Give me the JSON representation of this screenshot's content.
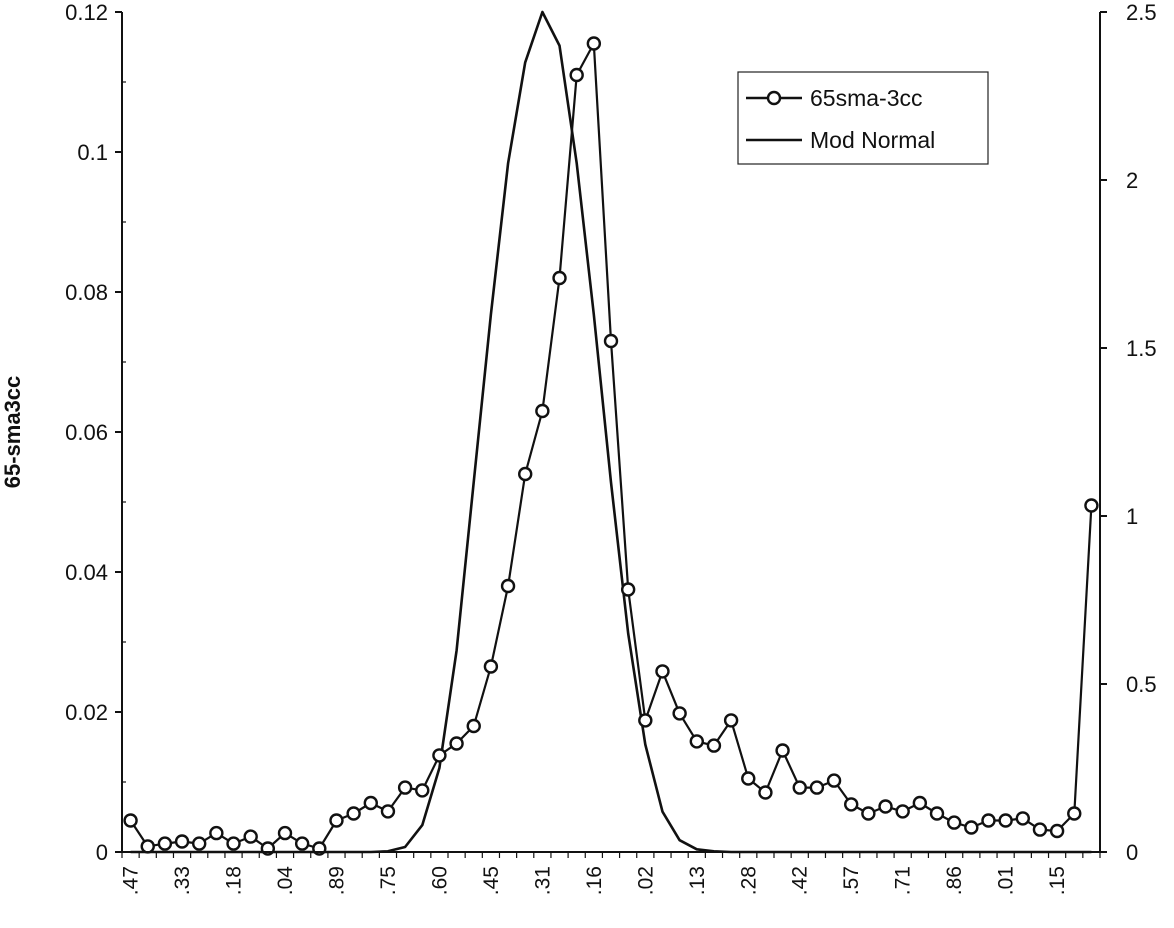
{
  "chart_data": {
    "type": "line",
    "ylabel": "65-sma3cc",
    "ylim": [
      0,
      0.12
    ],
    "y_ticks": [
      "0",
      "0.02",
      "0.04",
      "0.06",
      "0.08",
      "0.1",
      "0.12"
    ],
    "y2lim": [
      0,
      2.5
    ],
    "y2_ticks": [
      "0",
      "0.5",
      "1",
      "1.5",
      "2",
      "2.5"
    ],
    "x_tick_labels": [
      ".47",
      ".33",
      ".18",
      ".04",
      ".89",
      ".75",
      ".60",
      ".45",
      ".31",
      ".16",
      ".02",
      ".13",
      ".28",
      ".42",
      ".57",
      ".71",
      ".86",
      ".01",
      ".15"
    ],
    "legend_position": "top-right",
    "grid": false,
    "series": [
      {
        "name": "65sma-3cc",
        "axis": "left",
        "marker": "circle",
        "values": [
          0.0045,
          0.0008,
          0.0012,
          0.0015,
          0.0012,
          0.0027,
          0.0012,
          0.0022,
          0.0005,
          0.0027,
          0.0012,
          0.0005,
          0.0045,
          0.0055,
          0.007,
          0.0058,
          0.0092,
          0.0088,
          0.0138,
          0.0155,
          0.018,
          0.0265,
          0.038,
          0.054,
          0.063,
          0.082,
          0.111,
          0.1155,
          0.073,
          0.0375,
          0.0188,
          0.0258,
          0.0198,
          0.0158,
          0.0152,
          0.0188,
          0.0105,
          0.0085,
          0.0145,
          0.0092,
          0.0092,
          0.0102,
          0.0068,
          0.0055,
          0.0065,
          0.0058,
          0.007,
          0.0055,
          0.0042,
          0.0035,
          0.0045,
          0.0045,
          0.0048,
          0.0032,
          0.003,
          0.0055,
          0.0495
        ]
      },
      {
        "name": "Mod Normal",
        "axis": "right",
        "marker": "none",
        "values": [
          0,
          0,
          0,
          0,
          0,
          0,
          0,
          0,
          0,
          0,
          0,
          0,
          0,
          0,
          0,
          0.002,
          0.015,
          0.08,
          0.25,
          0.6,
          1.1,
          1.6,
          2.05,
          2.35,
          2.5,
          2.4,
          2.05,
          1.6,
          1.1,
          0.65,
          0.32,
          0.12,
          0.035,
          0.008,
          0.002,
          0,
          0,
          0,
          0,
          0,
          0,
          0,
          0,
          0,
          0,
          0,
          0,
          0,
          0,
          0,
          0,
          0,
          0,
          0,
          0,
          0,
          0
        ]
      }
    ]
  }
}
